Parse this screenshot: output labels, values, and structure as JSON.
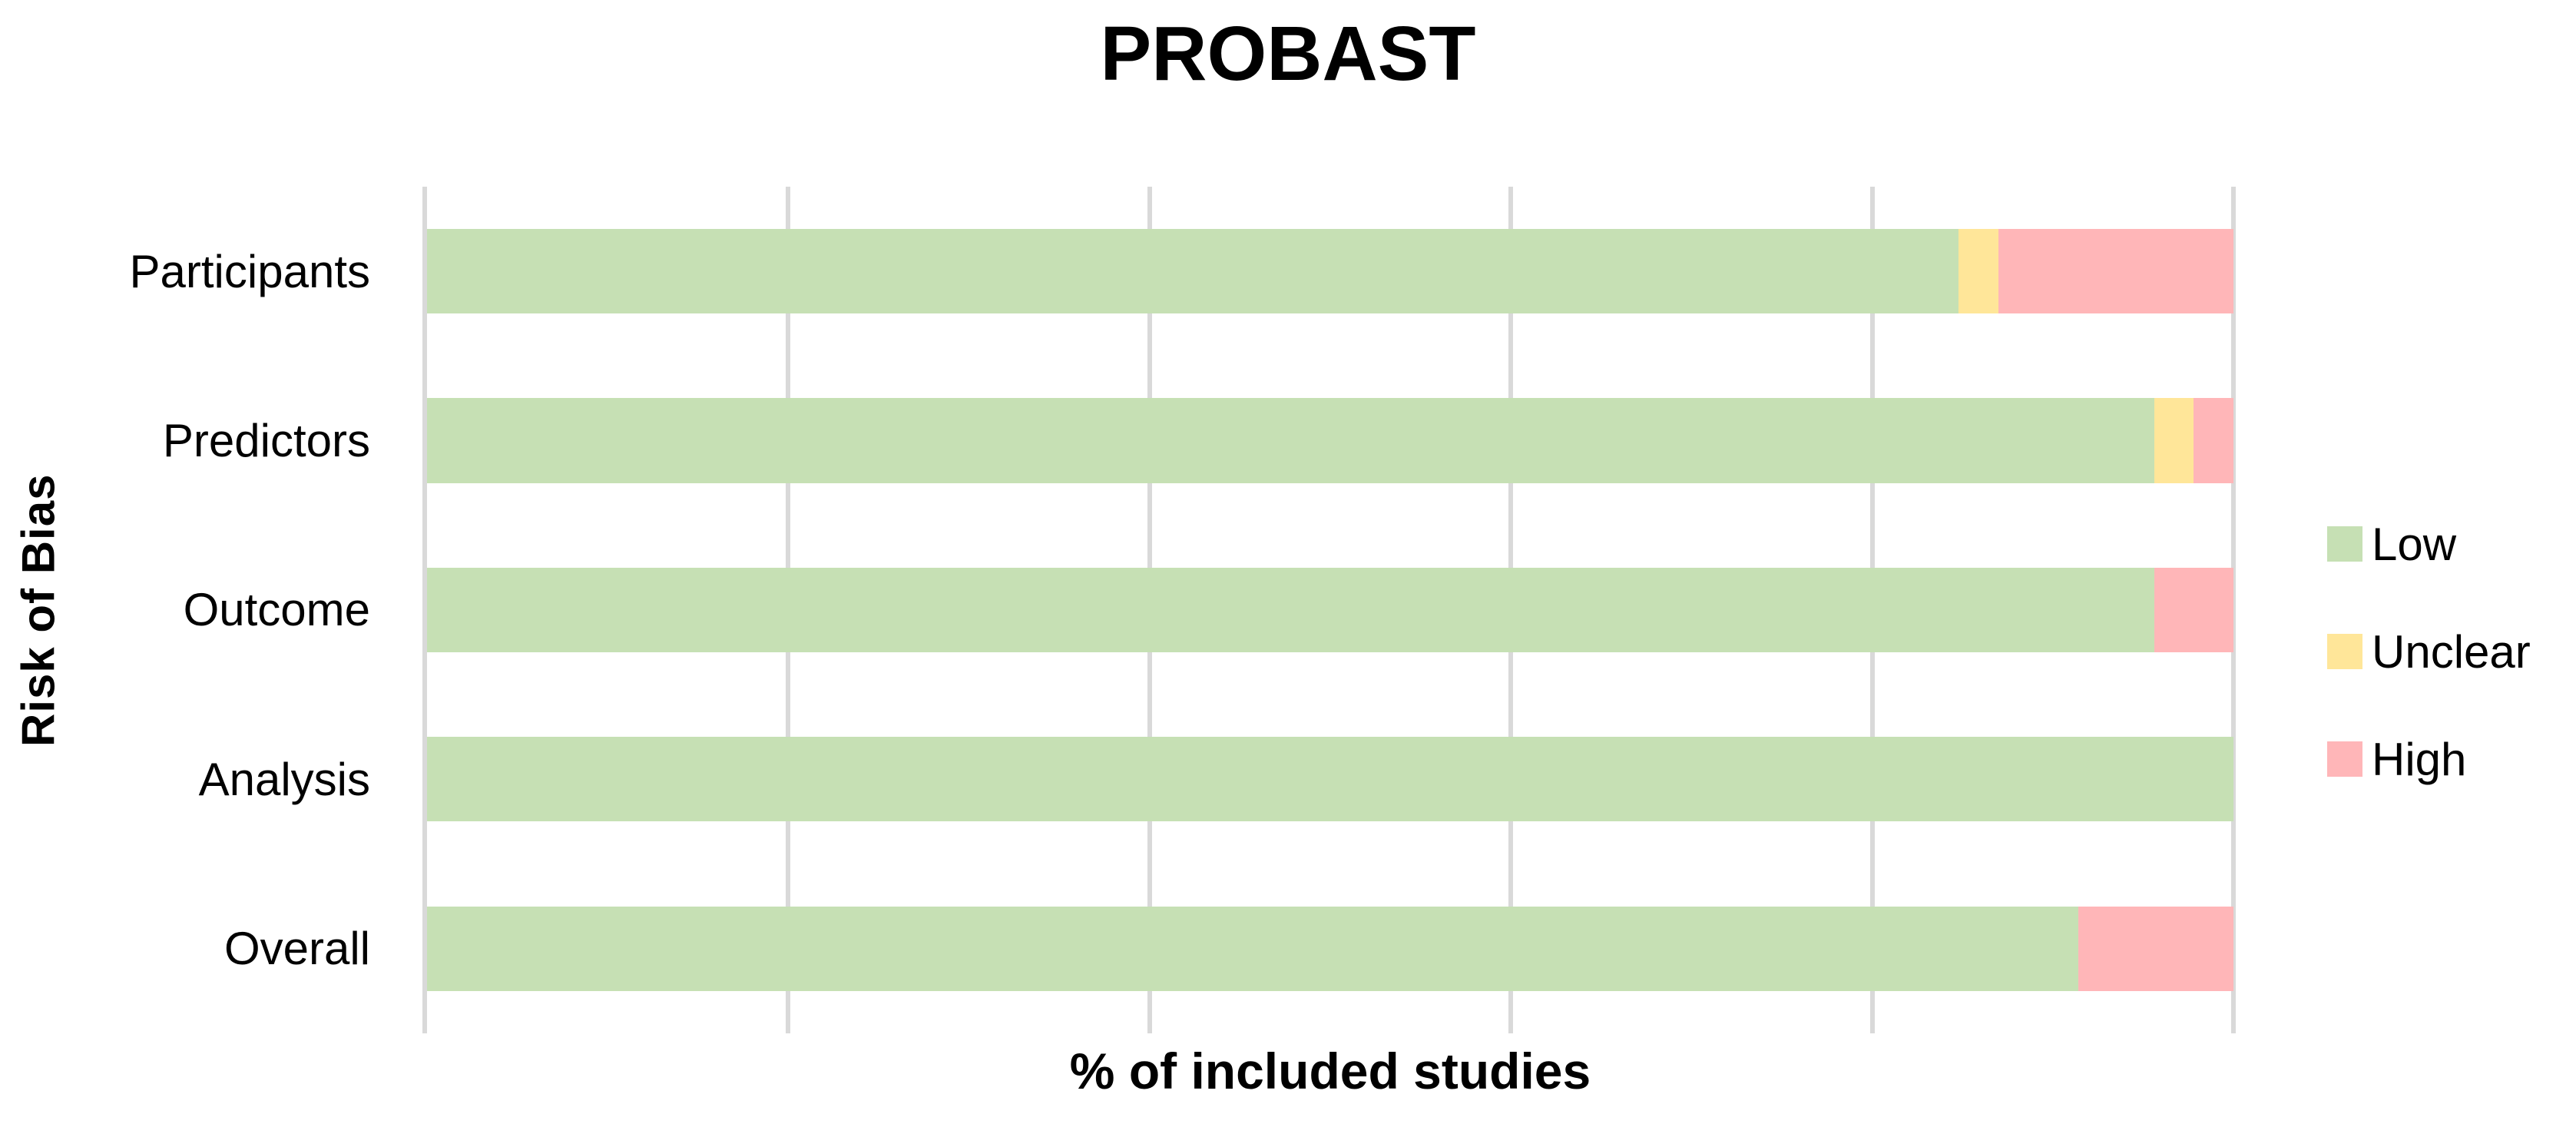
{
  "title": "PROBAST",
  "axes": {
    "y_label": "Risk of Bias",
    "x_label": "% of included studies"
  },
  "legend": [
    {
      "label": "Low",
      "color": "#c6e0b4"
    },
    {
      "label": "Unclear",
      "color": "#ffe699"
    },
    {
      "label": "High",
      "color": "#ffb6b8"
    }
  ],
  "colors": {
    "low": "#c6e0b4",
    "unclear": "#ffe699",
    "high": "#ffb6b8",
    "gridline": "#d9d9d9",
    "text": "#000000",
    "background": "#ffffff"
  },
  "chart_data": {
    "type": "bar",
    "orientation": "horizontal",
    "stacked": true,
    "title": "PROBAST",
    "xlabel": "% of included studies",
    "ylabel": "Risk of Bias",
    "categories": [
      "Participants",
      "Predictors",
      "Outcome",
      "Analysis",
      "Overall"
    ],
    "series": [
      {
        "name": "Low",
        "color": "#c6e0b4",
        "values": [
          84.8,
          95.6,
          95.6,
          100,
          91.4
        ]
      },
      {
        "name": "Unclear",
        "color": "#ffe699",
        "values": [
          2.2,
          2.2,
          0,
          0,
          0
        ]
      },
      {
        "name": "High",
        "color": "#ffb6b8",
        "values": [
          13.0,
          2.2,
          4.4,
          0,
          8.6
        ]
      }
    ],
    "xlim": [
      0,
      100
    ],
    "gridlines_percent": [
      0,
      20,
      40,
      60,
      80,
      100
    ],
    "grid_on": true,
    "tick_labels_shown": false,
    "legend_position": "right"
  }
}
